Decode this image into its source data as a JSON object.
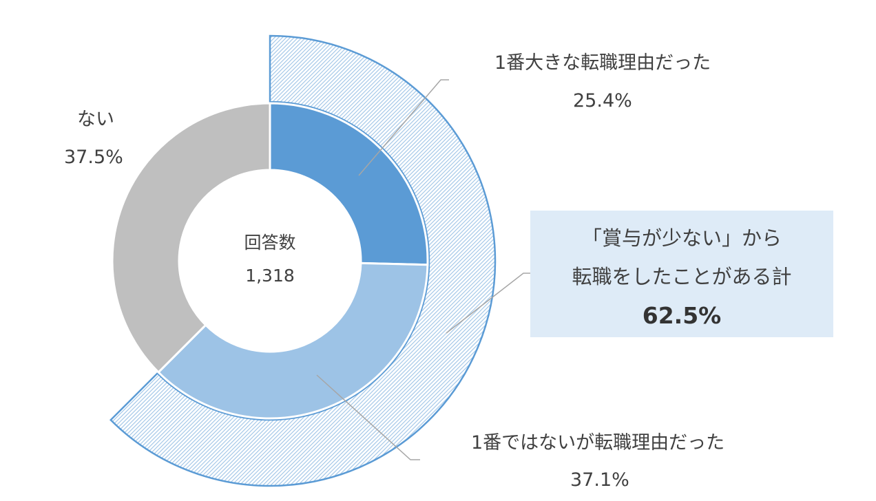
{
  "chart_data": {
    "type": "pie",
    "rings": [
      {
        "ring": "inner",
        "slices": [
          {
            "label": "1番大きな転職理由だった",
            "value": 25.4,
            "display": "25.4%",
            "color": "#5b9bd5"
          },
          {
            "label": "1番ではないが転職理由だった",
            "value": 37.1,
            "display": "37.1%",
            "color": "#9dc3e6"
          },
          {
            "label": "ない",
            "value": 37.5,
            "display": "37.5%",
            "color": "#bfbfbf"
          }
        ]
      },
      {
        "ring": "outer",
        "slices": [
          {
            "label": "「賞与が少ない」から転職をしたことがある計",
            "value": 62.5,
            "display": "62.5%",
            "pattern": "hatched",
            "color": "#5b9bd5"
          }
        ]
      }
    ],
    "center": {
      "label": "回答数",
      "value": "1,318"
    },
    "total_callout": {
      "line1": "「賞与が少ない」から",
      "line2": "転職をしたことがある計",
      "value": "62.5%",
      "background": "#deebf7"
    }
  }
}
